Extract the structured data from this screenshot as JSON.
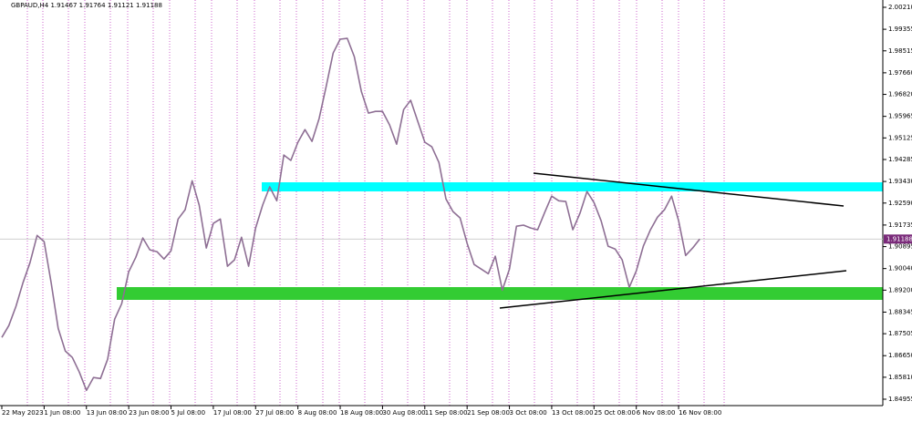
{
  "chart_data": {
    "type": "line",
    "title": "GBPAUD,H4  1.91467 1.91764 1.91121 1.91188",
    "categories": [
      "22 May 2023",
      null,
      null,
      null,
      null,
      null,
      "1 Jun 08:00",
      null,
      null,
      null,
      null,
      null,
      "13 Jun 08:00",
      null,
      null,
      null,
      null,
      null,
      "23 Jun 08:00",
      null,
      null,
      null,
      null,
      null,
      "5 Jul 08:00",
      null,
      null,
      null,
      null,
      null,
      "17 Jul 08:00",
      null,
      null,
      null,
      null,
      null,
      "27 Jul 08:00",
      null,
      null,
      null,
      null,
      null,
      "8 Aug 08:00",
      null,
      null,
      null,
      null,
      null,
      "18 Aug 08:00",
      null,
      null,
      null,
      null,
      null,
      "30 Aug 08:00",
      null,
      null,
      null,
      null,
      null,
      "11 Sep 08:00",
      null,
      null,
      null,
      null,
      null,
      "21 Sep 08:00",
      null,
      null,
      null,
      null,
      null,
      "3 Oct 08:00",
      null,
      null,
      null,
      null,
      null,
      "13 Oct 08:00",
      null,
      null,
      null,
      null,
      null,
      "25 Oct 08:00",
      null,
      null,
      null,
      null,
      null,
      "6 Nov 08:00",
      null,
      null,
      null,
      null,
      null,
      "16 Nov 08:00",
      null,
      null,
      null
    ],
    "series": [
      {
        "name": "GBPAUD,H4",
        "color": "#8e6f94",
        "values": [
          1.8736,
          1.8782,
          1.8857,
          1.8949,
          1.9027,
          1.9133,
          1.9109,
          1.8949,
          1.8771,
          1.8683,
          1.8658,
          1.8601,
          1.853,
          1.858,
          1.8576,
          1.8651,
          1.8807,
          1.8867,
          1.8991,
          1.9048,
          1.9123,
          1.9077,
          1.907,
          1.9041,
          1.9073,
          1.9197,
          1.9233,
          1.9346,
          1.9251,
          1.9084,
          1.918,
          1.9197,
          1.9013,
          1.9038,
          1.9126,
          1.9013,
          1.9162,
          1.9251,
          1.9322,
          1.9268,
          1.9446,
          1.9425,
          1.9496,
          1.9545,
          1.9499,
          1.9588,
          1.9712,
          1.9843,
          1.9897,
          1.99,
          1.9829,
          1.9694,
          1.9609,
          1.9616,
          1.9616,
          1.9563,
          1.9488,
          1.9623,
          1.9659,
          1.9577,
          1.9496,
          1.9478,
          1.9417,
          1.9275,
          1.9226,
          1.9201,
          1.9102,
          1.902,
          1.9002,
          1.8984,
          1.9052,
          1.892,
          1.9002,
          1.9169,
          1.9173,
          1.9162,
          1.9155,
          1.9222,
          1.9286,
          1.9268,
          1.9265,
          1.9155,
          1.9219,
          1.9304,
          1.9261,
          1.919,
          1.9091,
          1.908,
          1.9038,
          1.8931,
          1.8995,
          1.9091,
          1.9155,
          1.9204,
          1.9233,
          1.9286,
          1.919,
          1.9055,
          1.9084,
          1.91188
        ]
      }
    ],
    "last_price": 1.91188,
    "ylim": [
      1.84955,
      2.0021
    ],
    "yticks": [
      {
        "value": 2.0021,
        "label": "2.00210"
      },
      1.99355,
      1.98515,
      {
        "value": 1.9766,
        "label": "1.97660"
      },
      {
        "value": 1.9682,
        "label": "1.96820"
      },
      1.95965,
      1.95125,
      1.94285,
      {
        "value": 1.9343,
        "label": "1.93430"
      },
      {
        "value": 1.9259,
        "label": "1.92590"
      },
      1.91735,
      1.90895,
      {
        "value": 1.9004,
        "label": "1.90040"
      },
      {
        "value": 1.892,
        "label": "1.89200"
      },
      1.88345,
      1.87505,
      {
        "value": 1.8665,
        "label": "1.86650"
      },
      {
        "value": 1.8581,
        "label": "1.85810"
      },
      1.84955
    ]
  }
}
